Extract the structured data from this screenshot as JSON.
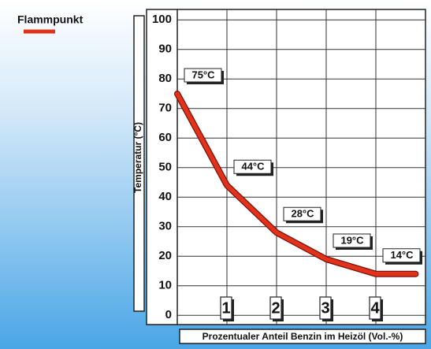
{
  "chart_data": {
    "type": "line",
    "x_label": "Prozentualer Anteil Benzin im Heizöl (Vol.-%)",
    "y_label": "Temperatur (°C)",
    "x": [
      0,
      1,
      2,
      3,
      4,
      4.8
    ],
    "series": [
      {
        "name": "Flammpunkt",
        "color": "#e2321c",
        "values": [
          75,
          44,
          28,
          19,
          14,
          14
        ],
        "value_labels": [
          "75°C",
          "44°C",
          "28°C",
          "19°C",
          "14°C",
          null
        ]
      }
    ],
    "xlim": [
      0,
      5
    ],
    "xticks": [
      1,
      2,
      3,
      4
    ],
    "ylim": [
      -3,
      103
    ],
    "yticks": [
      0,
      10,
      20,
      30,
      40,
      50,
      60,
      70,
      80,
      90,
      100
    ],
    "grid": true,
    "legend": "top-left"
  }
}
